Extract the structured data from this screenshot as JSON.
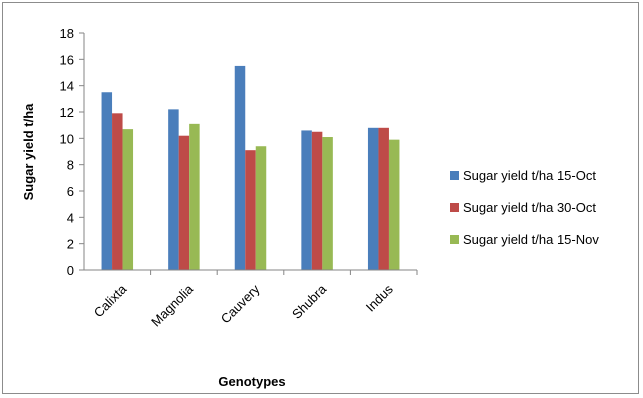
{
  "chart_data": {
    "type": "bar",
    "title": "",
    "xlabel": "Genotypes",
    "ylabel": "Sugar yield t/ha",
    "ylim": [
      0,
      18
    ],
    "yticks": [
      0,
      2,
      4,
      6,
      8,
      10,
      12,
      14,
      16,
      18
    ],
    "categories": [
      "Calixta",
      "Magnolia",
      "Cauvery",
      "Shubra",
      "Indus"
    ],
    "series": [
      {
        "name": "Sugar yield t/ha 15-Oct",
        "color": "#4a7ebb",
        "values": [
          13.5,
          12.2,
          15.5,
          10.6,
          10.8
        ]
      },
      {
        "name": "Sugar yield t/ha 30-Oct",
        "color": "#be4b48",
        "values": [
          11.9,
          10.2,
          9.1,
          10.5,
          10.8
        ]
      },
      {
        "name": "Sugar yield t/ha 15-Nov",
        "color": "#98b954",
        "values": [
          10.7,
          11.1,
          9.4,
          10.1,
          9.9
        ]
      }
    ],
    "grid": false,
    "legend": "right"
  }
}
